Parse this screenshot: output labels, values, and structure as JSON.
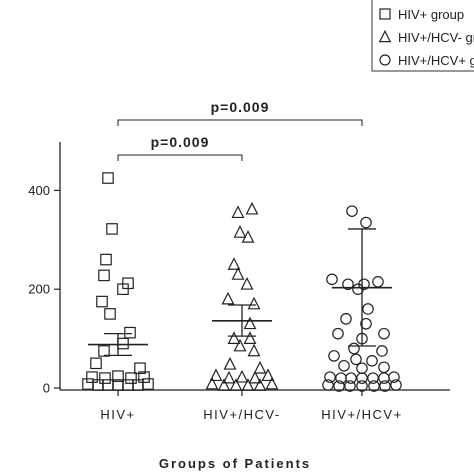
{
  "chart_data": {
    "type": "scatter",
    "xlabel": "Groups of Patients",
    "ylabel": "",
    "ylim": [
      0,
      450
    ],
    "yticks": [
      0,
      200,
      400
    ],
    "categories": [
      "HIV+",
      "HIV+/HCV-",
      "HIV+/HCV+"
    ],
    "legend": {
      "placement": "top-right",
      "entries": [
        {
          "marker": "square",
          "label": "HIV+ group"
        },
        {
          "marker": "triangle",
          "label": "HIV+/HCV- group"
        },
        {
          "marker": "circle",
          "label": "HIV+/HCV+ group"
        }
      ]
    },
    "series": [
      {
        "marker": "square",
        "category": "HIV+",
        "mean": 88,
        "sem_low": 66,
        "sem_high": 110,
        "points": [
          {
            "o": -0.1,
            "v": 425
          },
          {
            "o": -0.06,
            "v": 322
          },
          {
            "o": -0.12,
            "v": 260
          },
          {
            "o": -0.14,
            "v": 228
          },
          {
            "o": 0.1,
            "v": 212
          },
          {
            "o": 0.05,
            "v": 200
          },
          {
            "o": -0.16,
            "v": 175
          },
          {
            "o": -0.08,
            "v": 150
          },
          {
            "o": 0.12,
            "v": 112
          },
          {
            "o": 0.05,
            "v": 90
          },
          {
            "o": -0.14,
            "v": 75
          },
          {
            "o": -0.22,
            "v": 50
          },
          {
            "o": 0.22,
            "v": 40
          },
          {
            "o": -0.26,
            "v": 22
          },
          {
            "o": -0.13,
            "v": 20
          },
          {
            "o": 0.0,
            "v": 24
          },
          {
            "o": 0.13,
            "v": 20
          },
          {
            "o": 0.26,
            "v": 22
          },
          {
            "o": -0.3,
            "v": 8
          },
          {
            "o": -0.2,
            "v": 6
          },
          {
            "o": -0.1,
            "v": 6
          },
          {
            "o": 0.0,
            "v": 6
          },
          {
            "o": 0.1,
            "v": 6
          },
          {
            "o": 0.2,
            "v": 6
          },
          {
            "o": 0.3,
            "v": 8
          }
        ]
      },
      {
        "marker": "triangle",
        "category": "HIV+/HCV-",
        "mean": 136,
        "sem_low": 105,
        "sem_high": 168,
        "points": [
          {
            "o": 0.1,
            "v": 362
          },
          {
            "o": -0.04,
            "v": 355
          },
          {
            "o": -0.02,
            "v": 315
          },
          {
            "o": 0.06,
            "v": 305
          },
          {
            "o": -0.08,
            "v": 250
          },
          {
            "o": -0.04,
            "v": 230
          },
          {
            "o": 0.05,
            "v": 210
          },
          {
            "o": -0.14,
            "v": 180
          },
          {
            "o": 0.12,
            "v": 170
          },
          {
            "o": 0.08,
            "v": 130
          },
          {
            "o": -0.08,
            "v": 100
          },
          {
            "o": 0.08,
            "v": 100
          },
          {
            "o": -0.02,
            "v": 85
          },
          {
            "o": 0.12,
            "v": 75
          },
          {
            "o": -0.12,
            "v": 48
          },
          {
            "o": 0.18,
            "v": 40
          },
          {
            "o": -0.26,
            "v": 25
          },
          {
            "o": -0.13,
            "v": 20
          },
          {
            "o": 0.0,
            "v": 22
          },
          {
            "o": 0.13,
            "v": 20
          },
          {
            "o": 0.26,
            "v": 25
          },
          {
            "o": -0.3,
            "v": 8
          },
          {
            "o": -0.18,
            "v": 5
          },
          {
            "o": -0.06,
            "v": 5
          },
          {
            "o": 0.06,
            "v": 5
          },
          {
            "o": 0.18,
            "v": 5
          },
          {
            "o": 0.3,
            "v": 8
          }
        ]
      },
      {
        "marker": "circle",
        "category": "HIV+/HCV+",
        "mean": 203,
        "sd_low": 85,
        "sd_high": 322,
        "points": [
          {
            "o": -0.1,
            "v": 358
          },
          {
            "o": 0.04,
            "v": 335
          },
          {
            "o": -0.3,
            "v": 220
          },
          {
            "o": -0.14,
            "v": 210
          },
          {
            "o": 0.02,
            "v": 210
          },
          {
            "o": 0.16,
            "v": 215
          },
          {
            "o": -0.04,
            "v": 200
          },
          {
            "o": 0.06,
            "v": 160
          },
          {
            "o": -0.16,
            "v": 140
          },
          {
            "o": 0.04,
            "v": 130
          },
          {
            "o": -0.24,
            "v": 110
          },
          {
            "o": 0.0,
            "v": 100
          },
          {
            "o": 0.22,
            "v": 110
          },
          {
            "o": -0.08,
            "v": 80
          },
          {
            "o": 0.2,
            "v": 75
          },
          {
            "o": -0.28,
            "v": 65
          },
          {
            "o": -0.06,
            "v": 58
          },
          {
            "o": 0.1,
            "v": 55
          },
          {
            "o": -0.18,
            "v": 45
          },
          {
            "o": 0.0,
            "v": 40
          },
          {
            "o": 0.22,
            "v": 42
          },
          {
            "o": -0.32,
            "v": 22
          },
          {
            "o": -0.21,
            "v": 20
          },
          {
            "o": -0.11,
            "v": 20
          },
          {
            "o": 0.0,
            "v": 20
          },
          {
            "o": 0.11,
            "v": 20
          },
          {
            "o": 0.22,
            "v": 20
          },
          {
            "o": 0.32,
            "v": 22
          },
          {
            "o": -0.34,
            "v": 6
          },
          {
            "o": -0.23,
            "v": 4
          },
          {
            "o": -0.12,
            "v": 4
          },
          {
            "o": 0.0,
            "v": 4
          },
          {
            "o": 0.12,
            "v": 4
          },
          {
            "o": 0.23,
            "v": 4
          },
          {
            "o": 0.34,
            "v": 6
          }
        ]
      }
    ],
    "annotations": [
      {
        "text": "p=0.009",
        "from": 0,
        "to": 1,
        "level": 1
      },
      {
        "text": "p=0.009",
        "from": 0,
        "to": 2,
        "level": 2
      }
    ],
    "grid": false
  }
}
